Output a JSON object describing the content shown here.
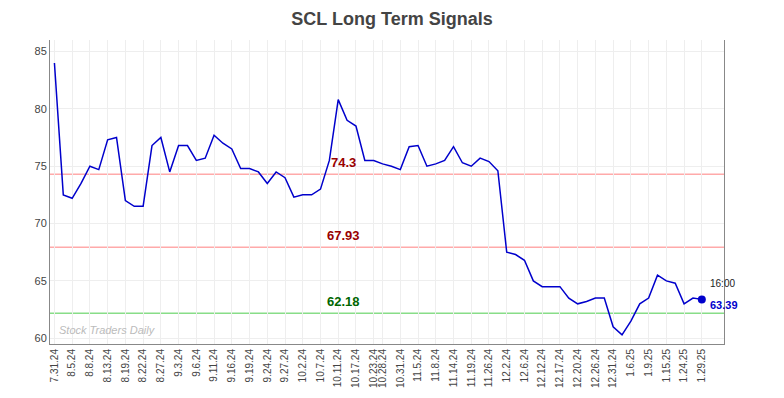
{
  "chart_data": {
    "type": "line",
    "title": "SCL Long Term Signals",
    "categories": [
      "7.31.24",
      null,
      "8.5.24",
      null,
      "8.8.24",
      null,
      "8.13.24",
      null,
      "8.19.24",
      null,
      "8.22.24",
      null,
      "8.27.24",
      null,
      "9.3.24",
      null,
      "9.6.24",
      null,
      "9.11.24",
      null,
      "9.16.24",
      null,
      "9.19.24",
      null,
      "9.24.24",
      null,
      "9.27.24",
      null,
      "10.2.24",
      null,
      "10.7.24",
      null,
      "10.11.24",
      null,
      "10.17.24",
      null,
      "10.23.24",
      "10.28.24",
      null,
      "10.31.24",
      null,
      "11.5.24",
      null,
      "11.8.24",
      null,
      "11.14.24",
      null,
      "11.19.24",
      null,
      "11.26.24",
      null,
      "12.2.24",
      null,
      "12.6.24",
      null,
      "12.12.24",
      null,
      "12.17.24",
      null,
      "12.20.24",
      null,
      "12.26.24",
      null,
      "12.31.24",
      null,
      "1.6.25",
      null,
      "1.9.25",
      null,
      "1.15.25",
      null,
      "1.24.25",
      null,
      "1.29.25"
    ],
    "values": [
      84.0,
      72.5,
      72.2,
      73.5,
      75.0,
      74.7,
      77.3,
      77.5,
      72.0,
      71.5,
      71.5,
      76.8,
      77.5,
      74.5,
      76.8,
      76.8,
      75.5,
      75.7,
      77.7,
      77.0,
      76.5,
      74.8,
      74.8,
      74.5,
      73.5,
      74.5,
      74.0,
      72.3,
      72.5,
      72.5,
      73.0,
      75.5,
      80.8,
      79.0,
      78.5,
      75.5,
      75.5,
      75.2,
      75.0,
      74.7,
      76.7,
      76.8,
      75.0,
      75.2,
      75.5,
      76.7,
      75.3,
      75.0,
      75.7,
      75.4,
      74.6,
      67.5,
      67.3,
      66.8,
      65.0,
      64.5,
      64.5,
      64.5,
      63.5,
      63.0,
      63.2,
      63.5,
      63.5,
      61.0,
      60.3,
      61.5,
      63.0,
      63.5,
      65.5,
      65.0,
      64.8,
      63.0,
      63.5,
      63.39
    ],
    "color": "#0000cc",
    "ylim": [
      59.5,
      86
    ],
    "yticks": [
      60,
      65,
      70,
      75,
      80,
      85
    ],
    "grid": true,
    "hlines": [
      {
        "value": 74.3,
        "label": "74.3",
        "color": "#ffaaaa",
        "text_color": "#990000"
      },
      {
        "value": 67.93,
        "label": "67.93",
        "color": "#ffaaaa",
        "text_color": "#990000"
      },
      {
        "value": 62.18,
        "label": "62.18",
        "color": "#88dd88",
        "text_color": "#006600"
      }
    ],
    "last_point": {
      "label": "16:00",
      "value": 63.39,
      "color": "#0000cc",
      "marker": "circle"
    },
    "watermark": {
      "text": "Stock Traders Daily",
      "color": "#bbbbbb"
    }
  }
}
